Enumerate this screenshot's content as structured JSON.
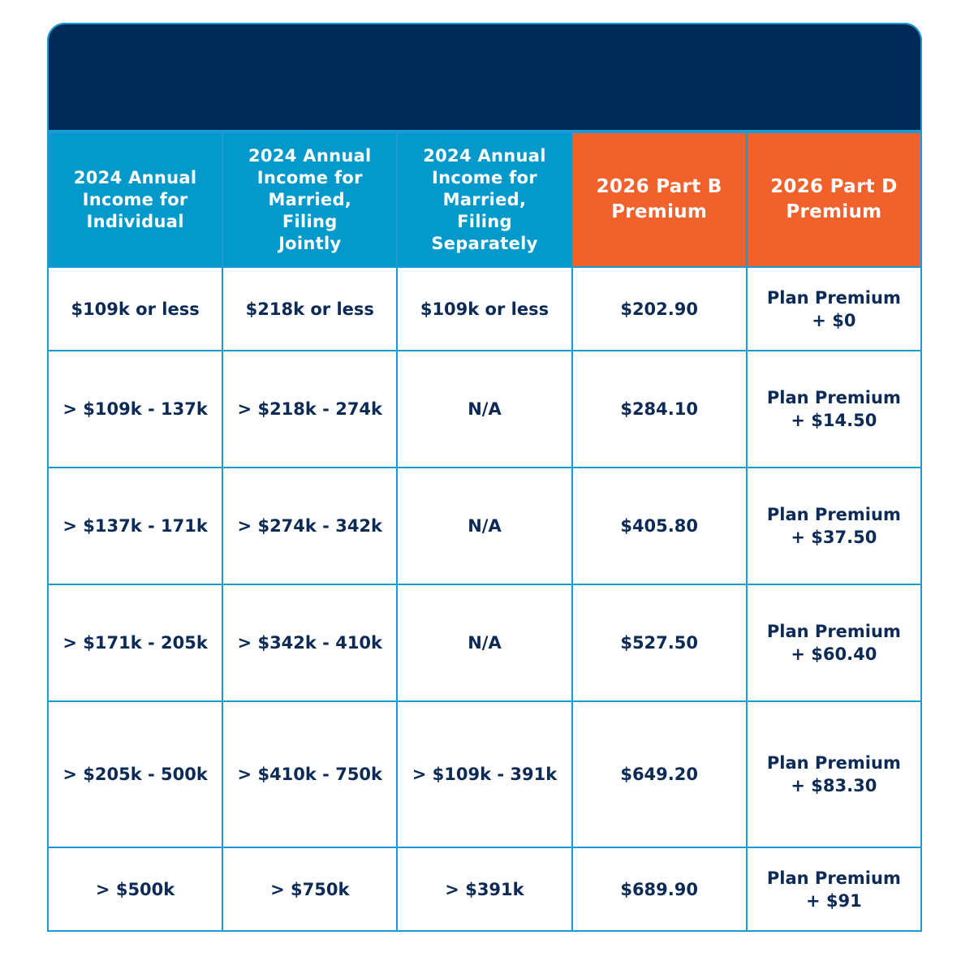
{
  "colors": {
    "banner": "#002b57",
    "header_blue": "#039acb",
    "header_orange": "#f1612b",
    "border": "#1a9ad6",
    "cell_text": "#0b2a55"
  },
  "headers": [
    "2024 Annual\nIncome for\nIndividual",
    "2024 Annual\nIncome for\nMarried,\nFiling\nJointly",
    "2024 Annual\nIncome for\nMarried,\nFiling\nSeparately",
    "2026 Part B\nPremium",
    "2026 Part D\nPremium"
  ],
  "rows": [
    [
      "$109k or less",
      "$218k or less",
      "$109k or less",
      "$202.90",
      "Plan Premium\n+ $0"
    ],
    [
      "> $109k - 137k",
      "> $218k - 274k",
      "N/A",
      "$284.10",
      "Plan Premium\n+ $14.50"
    ],
    [
      "> $137k - 171k",
      "> $274k - 342k",
      "N/A",
      "$405.80",
      "Plan Premium\n+ $37.50"
    ],
    [
      "> $171k - 205k",
      "> $342k - 410k",
      "N/A",
      "$527.50",
      "Plan Premium\n+ $60.40"
    ],
    [
      "> $205k - 500k",
      "> $410k - 750k",
      "> $109k - 391k",
      "$649.20",
      "Plan Premium\n+ $83.30"
    ],
    [
      "> $500k",
      "> $750k",
      "> $391k",
      "$689.90",
      "Plan Premium\n+ $91"
    ]
  ]
}
